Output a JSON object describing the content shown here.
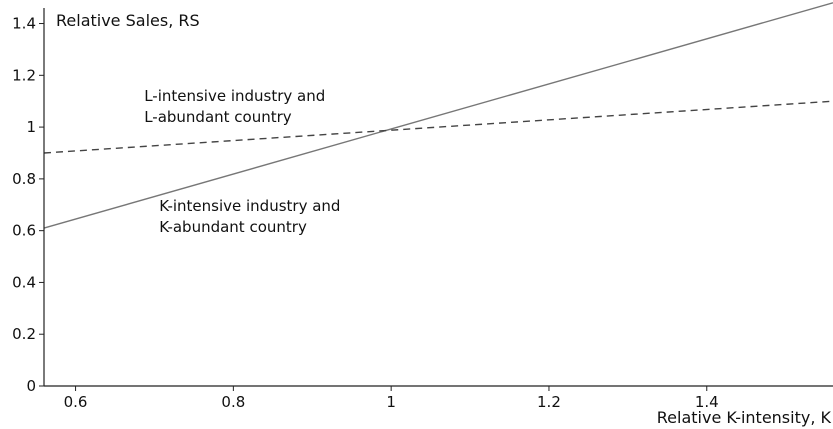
{
  "chart_data": {
    "type": "line",
    "title": "",
    "xlabel": "Relative K-intensity, K",
    "ylabel": "Relative Sales, RS",
    "xlim": [
      0.56,
      1.56
    ],
    "ylim": [
      0,
      1.46
    ],
    "x_ticks": [
      0.6,
      0.8,
      1,
      1.2,
      1.4
    ],
    "x_tick_labels": [
      "0.6",
      "0.8",
      "1",
      "1.2",
      "1.4"
    ],
    "y_ticks": [
      0,
      0.2,
      0.4,
      0.6,
      0.8,
      1,
      1.2,
      1.4
    ],
    "y_tick_labels": [
      "0",
      "0.2",
      "0.4",
      "0.6",
      "0.8",
      "1",
      "1.2",
      "1.4"
    ],
    "grid": false,
    "legend": "none",
    "series": [
      {
        "style": "solid",
        "color": "#777777",
        "x": [
          0.56,
          1.56
        ],
        "y": [
          0.61,
          1.48
        ]
      },
      {
        "style": "dashed",
        "color": "#444444",
        "x": [
          0.56,
          1.56
        ],
        "y": [
          0.9,
          1.1
        ]
      }
    ],
    "annotations": [
      {
        "id": "l",
        "lines": [
          "L-intensive industry and",
          "L-abundant country"
        ],
        "x": 0.687,
        "y": 1.1
      },
      {
        "id": "k",
        "lines": [
          "K-intensive industry and",
          "K-abundant country"
        ],
        "x": 0.706,
        "y": 0.675
      }
    ]
  }
}
